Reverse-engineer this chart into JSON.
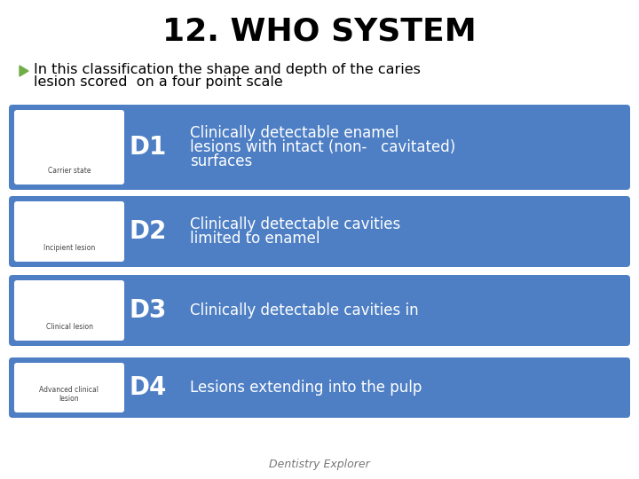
{
  "title": "12. WHO SYSTEM",
  "background_color": "#ffffff",
  "title_color": "#000000",
  "subtitle_line1": "In this classification the shape and depth of the caries",
  "subtitle_line2": "lesion scored  on a four point scale",
  "subtitle_color": "#000000",
  "bullet_color": "#70ad47",
  "box_color": "#4e7fc4",
  "box_text_color": "#ffffff",
  "rows": [
    {
      "label": "D1",
      "text_line1": "Clinically detectable enamel",
      "text_line2": "lesions with intact (non-   cavitated)",
      "text_line3": "surfaces"
    },
    {
      "label": "D2",
      "text_line1": "Clinically detectable cavities",
      "text_line2": "limited to enamel",
      "text_line3": ""
    },
    {
      "label": "D3",
      "text_line1": "Clinically detectable cavities in",
      "text_line2": "",
      "text_line3": ""
    },
    {
      "label": "D4",
      "text_line1": "Lesions extending into the pulp",
      "text_line2": "",
      "text_line3": ""
    }
  ],
  "footer": "Dentistry Explorer",
  "image_labels": [
    "Carrier state",
    "Incipient lesion",
    "Clinical lesion",
    "Advanced clinical\nlesion"
  ],
  "title_fontsize": 26,
  "subtitle_fontsize": 11.5,
  "label_fontsize": 20,
  "desc_fontsize": 12,
  "footer_fontsize": 9
}
